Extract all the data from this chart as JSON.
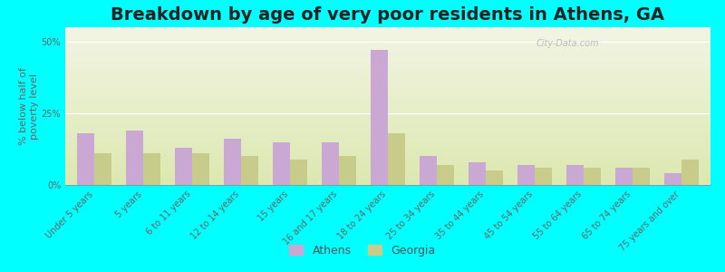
{
  "title": "Breakdown by age of very poor residents in Athens, GA",
  "ylabel": "% below half of\npoverty level",
  "categories": [
    "Under 5 years",
    "5 years",
    "6 to 11 years",
    "12 to 14 years",
    "15 years",
    "16 and 17 years",
    "18 to 24 years",
    "25 to 34 years",
    "35 to 44 years",
    "45 to 54 years",
    "55 to 64 years",
    "65 to 74 years",
    "75 years and over"
  ],
  "athens_values": [
    18,
    19,
    13,
    16,
    15,
    15,
    47,
    10,
    8,
    7,
    7,
    6,
    4
  ],
  "georgia_values": [
    11,
    11,
    11,
    10,
    9,
    10,
    18,
    7,
    5,
    6,
    6,
    6,
    9
  ],
  "athens_color": "#c9a8d4",
  "georgia_color": "#c8cc8a",
  "background_top": "#f2f5e4",
  "background_bottom": "#dde8b0",
  "outer_bg": "#00ffff",
  "bar_width": 0.35,
  "ylim": [
    0,
    55
  ],
  "yticks": [
    0,
    25,
    50
  ],
  "ytick_labels": [
    "0%",
    "25%",
    "50%"
  ],
  "title_fontsize": 14,
  "label_fontsize": 7,
  "ylabel_fontsize": 8,
  "legend_labels": [
    "Athens",
    "Georgia"
  ],
  "watermark": "City-Data.com"
}
